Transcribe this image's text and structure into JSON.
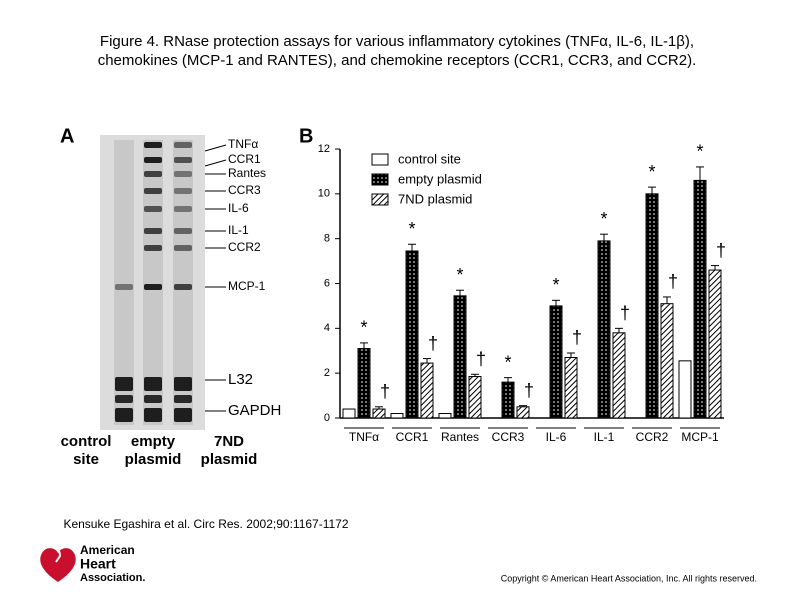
{
  "header": {
    "title_line1": "Figure 4. RNase protection assays for various inflammatory cytokines (TNFα, IL-6, IL-1β),",
    "title_line2": "chemokines (MCP-1 and RANTES), and chemokine receptors (CCR1, CCR3, and CCR2)."
  },
  "panel_a": {
    "label": "A",
    "band_labels": [
      "TNFα",
      "CCR1",
      "Rantes",
      "CCR3",
      "IL-6",
      "IL-1",
      "CCR2",
      "MCP-1",
      "L32",
      "GAPDH"
    ],
    "lanes": [
      [
        "control",
        "site"
      ],
      [
        "empty",
        "plasmid"
      ],
      [
        "7ND",
        "plasmid"
      ]
    ]
  },
  "panel_b_label": "B",
  "chart_data": {
    "type": "bar",
    "categories": [
      "TNFα",
      "CCR1",
      "Rantes",
      "CCR3",
      "IL-6",
      "IL-1",
      "CCR2",
      "MCP-1"
    ],
    "series": [
      {
        "name": "control site",
        "color": "#ffffff",
        "values": [
          0.4,
          0.2,
          0.2,
          null,
          null,
          null,
          null,
          2.55
        ]
      },
      {
        "name": "empty plasmid",
        "color": "#000000",
        "values": [
          3.1,
          7.45,
          5.45,
          1.6,
          5.0,
          7.9,
          10.0,
          10.6
        ],
        "errors": [
          0.25,
          0.3,
          0.25,
          0.2,
          0.25,
          0.3,
          0.3,
          0.6
        ],
        "symbols": [
          "*",
          "*",
          "*",
          "*",
          "*",
          "*",
          "*",
          "*"
        ]
      },
      {
        "name": "7ND plasmid",
        "color": "#000000",
        "values": [
          0.4,
          2.45,
          1.85,
          0.5,
          2.7,
          3.8,
          5.1,
          6.6
        ],
        "errors": [
          0.1,
          0.2,
          0.1,
          0.05,
          0.2,
          0.2,
          0.3,
          0.2
        ],
        "symbols": [
          "†",
          "†",
          "†",
          "†",
          "†",
          "†",
          "†",
          "†"
        ]
      }
    ],
    "ylim": [
      0,
      12
    ],
    "yticks": [
      0,
      2,
      4,
      6,
      8,
      10,
      12
    ],
    "grid": false
  },
  "citation": "Kensuke Egashira et al. Circ Res. 2002;90:1167-1172",
  "logo": [
    "American",
    "Heart",
    "Association."
  ],
  "copyright": "Copyright © American Heart Association, Inc. All rights reserved."
}
